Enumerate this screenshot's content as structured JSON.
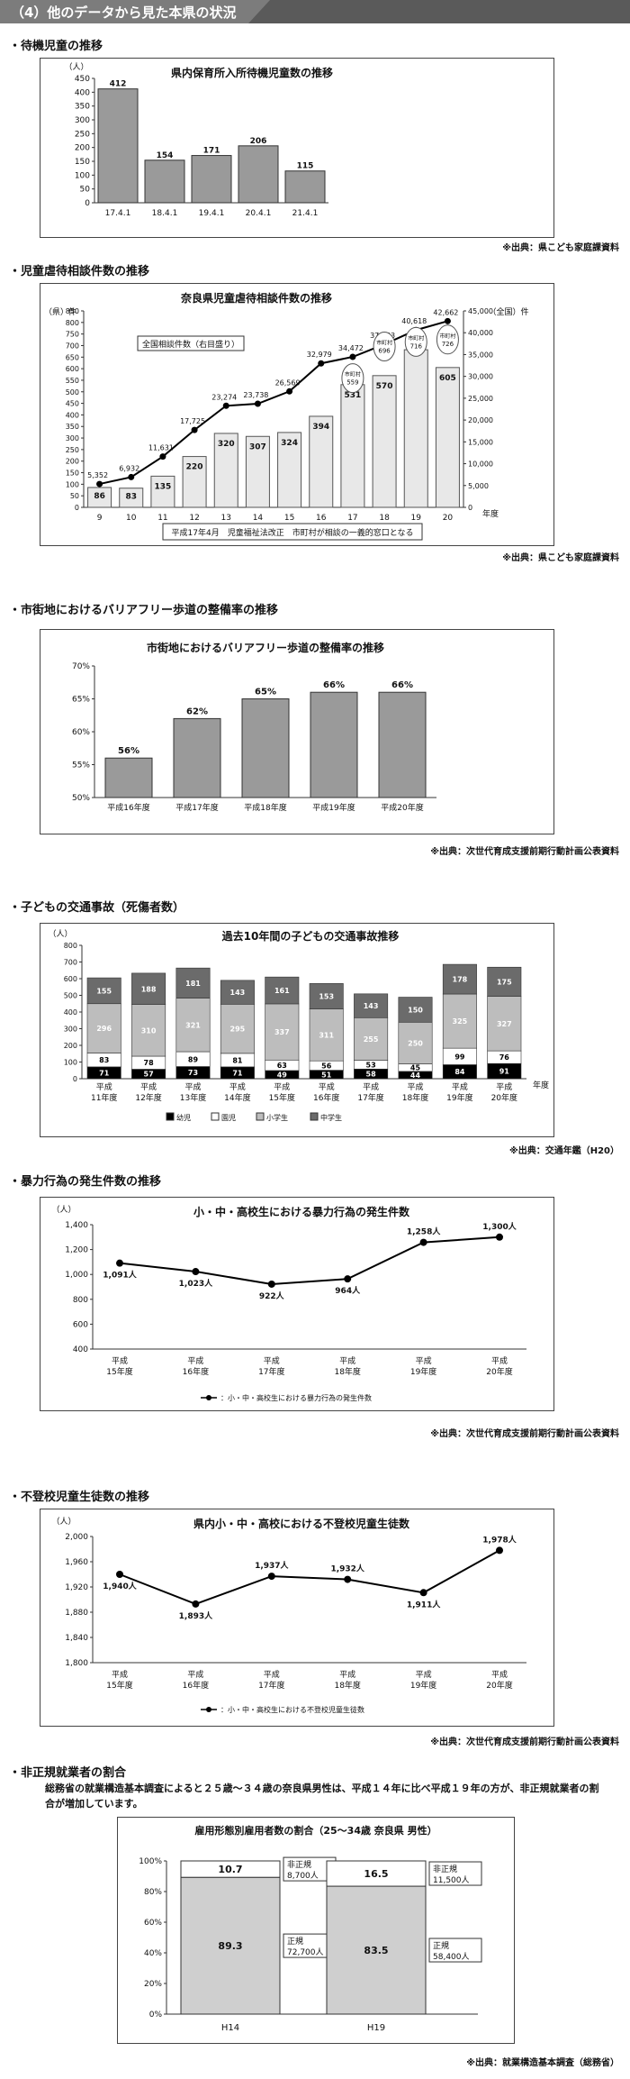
{
  "page_header": "（4）他のデータから見た本県の状況",
  "sections": {
    "s1": {
      "label": "・待機児童の推移",
      "source": "※出典：県こども家庭課資料"
    },
    "s2": {
      "label": "・児童虐待相談件数の推移",
      "source": "※出典：県こども家庭課資料"
    },
    "s3": {
      "label": "・市街地におけるバリアフリー歩道の整備率の推移",
      "source": "※出典：次世代育成支援前期行動計画公表資料"
    },
    "s4": {
      "label": "・子どもの交通事故（死傷者数）",
      "source": "※出典：交通年鑑（H20）"
    },
    "s5": {
      "label": "・暴力行為の発生件数の推移",
      "source": "※出典：次世代育成支援前期行動計画公表資料"
    },
    "s6": {
      "label": "・不登校児童生徒数の推移",
      "source": "※出典：次世代育成支援前期行動計画公表資料"
    },
    "s7": {
      "label": "・非正規就業者の割合",
      "paragraph": "総務省の就業構造基本調査によると２５歳～３４歳の奈良県男性は、平成１４年に比べ平成１９年の方が、非正規就業者の割合が増加しています。",
      "source": "※出典：就業構造基本調査（総務省）"
    }
  },
  "chart_data": [
    {
      "id": "c1",
      "type": "bar",
      "title": "県内保育所入所待機児童数の推移",
      "ylabel": "（人）",
      "ylim": [
        0,
        450
      ],
      "yticks": [
        "0",
        "50",
        "100",
        "150",
        "200",
        "250",
        "300",
        "350",
        "400",
        "450"
      ],
      "categories": [
        "17.4.1",
        "18.4.1",
        "19.4.1",
        "20.4.1",
        "21.4.1"
      ],
      "values": [
        412,
        154,
        171,
        206,
        115
      ],
      "labels": [
        "412",
        "154",
        "171",
        "206",
        "115"
      ],
      "color": "#9a9a9a"
    },
    {
      "id": "c2",
      "type": "bar+line",
      "title": "奈良県児童虐待相談件数の推移",
      "ylabel_left": "（県）件",
      "ylabel_right": "（全国）件",
      "xlabel": "年度",
      "ylim_left": [
        0,
        850
      ],
      "ylim_right": [
        0,
        45000
      ],
      "yticks_left": [
        "0",
        "50",
        "100",
        "150",
        "200",
        "250",
        "300",
        "350",
        "400",
        "450",
        "500",
        "550",
        "600",
        "650",
        "700",
        "750",
        "800",
        "850"
      ],
      "yticks_right": [
        "0",
        "5,000",
        "10,000",
        "15,000",
        "20,000",
        "25,000",
        "30,000",
        "35,000",
        "40,000",
        "45,000"
      ],
      "categories": [
        "9",
        "10",
        "11",
        "12",
        "13",
        "14",
        "15",
        "16",
        "17",
        "18",
        "19",
        "20"
      ],
      "bars": [
        86,
        83,
        135,
        220,
        320,
        307,
        324,
        394,
        531,
        570,
        682,
        605
      ],
      "bar_labels": [
        "86",
        "83",
        "135",
        "220",
        "320",
        "307",
        "324",
        "394",
        "531",
        "570",
        "682",
        "605"
      ],
      "line": [
        5352,
        6932,
        11631,
        17725,
        23274,
        23738,
        26569,
        32979,
        34472,
        37343,
        40618,
        42662
      ],
      "line_labels": [
        "5,352",
        "6,932",
        "11,631",
        "17,725",
        "23,274",
        "23,738",
        "26,569",
        "32,979",
        "34,472",
        "37,343",
        "40,618",
        "42,662"
      ],
      "line_legend": "全国相談件数（右目盛り）",
      "callouts": [
        {
          "line1": "市町村",
          "line2": "559",
          "value": 559
        },
        {
          "line1": "市町村",
          "line2": "696",
          "value": 696
        },
        {
          "line1": "市町村",
          "line2": "716",
          "value": 716
        },
        {
          "line1": "市町村",
          "line2": "726",
          "value": 726
        }
      ],
      "note": "平成17年4月　児童福祉法改正　市町村が相談の一義的窓口となる"
    },
    {
      "id": "c3",
      "type": "bar",
      "title": "市街地におけるバリアフリー歩道の整備率の推移",
      "ylim": [
        50,
        70
      ],
      "yticks": [
        "50%",
        "55%",
        "60%",
        "65%",
        "70%"
      ],
      "categories": [
        "平成16年度",
        "平成17年度",
        "平成18年度",
        "平成19年度",
        "平成20年度"
      ],
      "values": [
        56,
        62,
        65,
        66,
        66
      ],
      "labels": [
        "56%",
        "62%",
        "65%",
        "66%",
        "66%"
      ],
      "color": "#9a9a9a"
    },
    {
      "id": "c4",
      "type": "stacked-bar",
      "title": "過去10年間の子どもの交通事故推移",
      "ylabel": "（人）",
      "xlabel": "年度",
      "ylim": [
        0,
        800
      ],
      "yticks": [
        "0",
        "100",
        "200",
        "300",
        "400",
        "500",
        "600",
        "700",
        "800"
      ],
      "categories": [
        [
          "平成",
          "11年度"
        ],
        [
          "平成",
          "12年度"
        ],
        [
          "平成",
          "13年度"
        ],
        [
          "平成",
          "14年度"
        ],
        [
          "平成",
          "15年度"
        ],
        [
          "平成",
          "16年度"
        ],
        [
          "平成",
          "17年度"
        ],
        [
          "平成",
          "18年度"
        ],
        [
          "平成",
          "19年度"
        ],
        [
          "平成",
          "20年度"
        ]
      ],
      "series": [
        {
          "name": "幼児",
          "color": "#000000",
          "text": "#ffffff",
          "values": [
            71,
            57,
            73,
            71,
            49,
            51,
            58,
            44,
            84,
            91
          ]
        },
        {
          "name": "園児",
          "color": "#ffffff",
          "text": "#000000",
          "values": [
            83,
            78,
            89,
            81,
            63,
            56,
            53,
            45,
            99,
            76
          ]
        },
        {
          "name": "小学生",
          "color": "#bdbdbd",
          "text": "#ffffff",
          "values": [
            296,
            310,
            321,
            295,
            337,
            311,
            255,
            250,
            325,
            327
          ]
        },
        {
          "name": "中学生",
          "color": "#6b6b6b",
          "text": "#ffffff",
          "values": [
            155,
            188,
            181,
            143,
            161,
            153,
            143,
            150,
            178,
            175
          ]
        }
      ]
    },
    {
      "id": "c5",
      "type": "line",
      "title": "小・中・高校生における暴力行為の発生件数",
      "ylabel": "（人）",
      "ylim": [
        400,
        1400
      ],
      "yticks": [
        "400",
        "600",
        "800",
        "1,000",
        "1,200",
        "1,400"
      ],
      "categories": [
        [
          "平成",
          "15年度"
        ],
        [
          "平成",
          "16年度"
        ],
        [
          "平成",
          "17年度"
        ],
        [
          "平成",
          "18年度"
        ],
        [
          "平成",
          "19年度"
        ],
        [
          "平成",
          "20年度"
        ]
      ],
      "values": [
        1091,
        1023,
        922,
        964,
        1258,
        1300
      ],
      "labels": [
        "1,091人",
        "1,023人",
        "922人",
        "964人",
        "1,258人",
        "1,300人"
      ],
      "legend": "：小・中・高校生における暴力行為の発生件数"
    },
    {
      "id": "c6",
      "type": "line",
      "title": "県内小・中・高校における不登校児童生徒数",
      "ylabel": "（人）",
      "ylim": [
        1800,
        2000
      ],
      "yticks": [
        "1,800",
        "1,840",
        "1,880",
        "1,920",
        "1,960",
        "2,000"
      ],
      "categories": [
        [
          "平成",
          "15年度"
        ],
        [
          "平成",
          "16年度"
        ],
        [
          "平成",
          "17年度"
        ],
        [
          "平成",
          "18年度"
        ],
        [
          "平成",
          "19年度"
        ],
        [
          "平成",
          "20年度"
        ]
      ],
      "values": [
        1940,
        1893,
        1937,
        1932,
        1911,
        1978
      ],
      "labels": [
        "1,940人",
        "1,893人",
        "1,937人",
        "1,932人",
        "1,911人",
        "1,978人"
      ],
      "legend": "：小・中・高校生における不登校児童生徒数"
    },
    {
      "id": "c7",
      "type": "stacked-bar-100",
      "title": "雇用形態別雇用者数の割合（25～34歳 奈良県 男性）",
      "ylim": [
        0,
        100
      ],
      "yticks": [
        "0%",
        "20%",
        "40%",
        "60%",
        "80%",
        "100%"
      ],
      "categories": [
        "H14",
        "H19"
      ],
      "series": [
        {
          "name": "正規",
          "values": [
            89.3,
            83.5
          ],
          "labels": [
            "89.3",
            "83.5"
          ],
          "callouts": [
            [
              "正規",
              "72,700人"
            ],
            [
              "正規",
              "58,400人"
            ]
          ],
          "color": "#cfcfcf"
        },
        {
          "name": "非正規",
          "values": [
            10.7,
            16.5
          ],
          "labels": [
            "10.7",
            "16.5"
          ],
          "callouts": [
            [
              "非正規",
              "8,700人"
            ],
            [
              "非正規",
              "11,500人"
            ]
          ],
          "color": "#ffffff"
        }
      ]
    }
  ]
}
